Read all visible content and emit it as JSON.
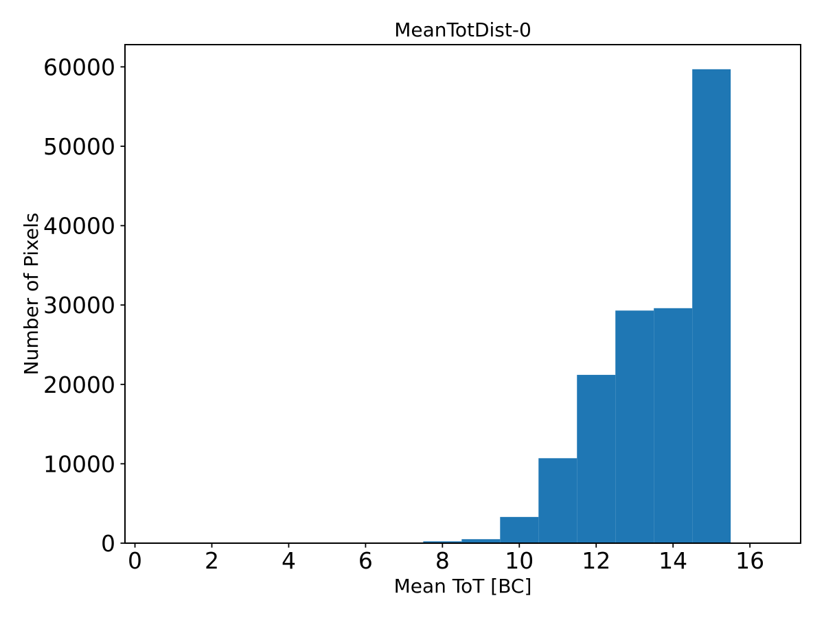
{
  "figure": {
    "background": "#ffffff",
    "text_color": "#000000",
    "spine_color": "#000000"
  },
  "chart_data": {
    "type": "bar",
    "subtype": "histogram",
    "title": "MeanTotDist-0",
    "xlabel": "Mean ToT [BC]",
    "ylabel": "Number of Pixels",
    "bin_edges": [
      7.5,
      8.5,
      9.5,
      10.5,
      11.5,
      12.5,
      13.5,
      14.5,
      15.5
    ],
    "counts": [
      230,
      500,
      3300,
      10700,
      21200,
      29300,
      29600,
      59700
    ],
    "bar_color": "#1f77b4",
    "xlim": [
      -0.26,
      17.32
    ],
    "ylim": [
      0,
      62800
    ],
    "xticks": [
      0,
      2,
      4,
      6,
      8,
      10,
      12,
      14,
      16
    ],
    "xtick_labels": [
      "0",
      "2",
      "4",
      "6",
      "8",
      "10",
      "12",
      "14",
      "16"
    ],
    "yticks": [
      0,
      10000,
      20000,
      30000,
      40000,
      50000,
      60000
    ],
    "ytick_labels": [
      "0",
      "10000",
      "20000",
      "30000",
      "40000",
      "50000",
      "60000"
    ],
    "grid": false,
    "legend": null
  }
}
